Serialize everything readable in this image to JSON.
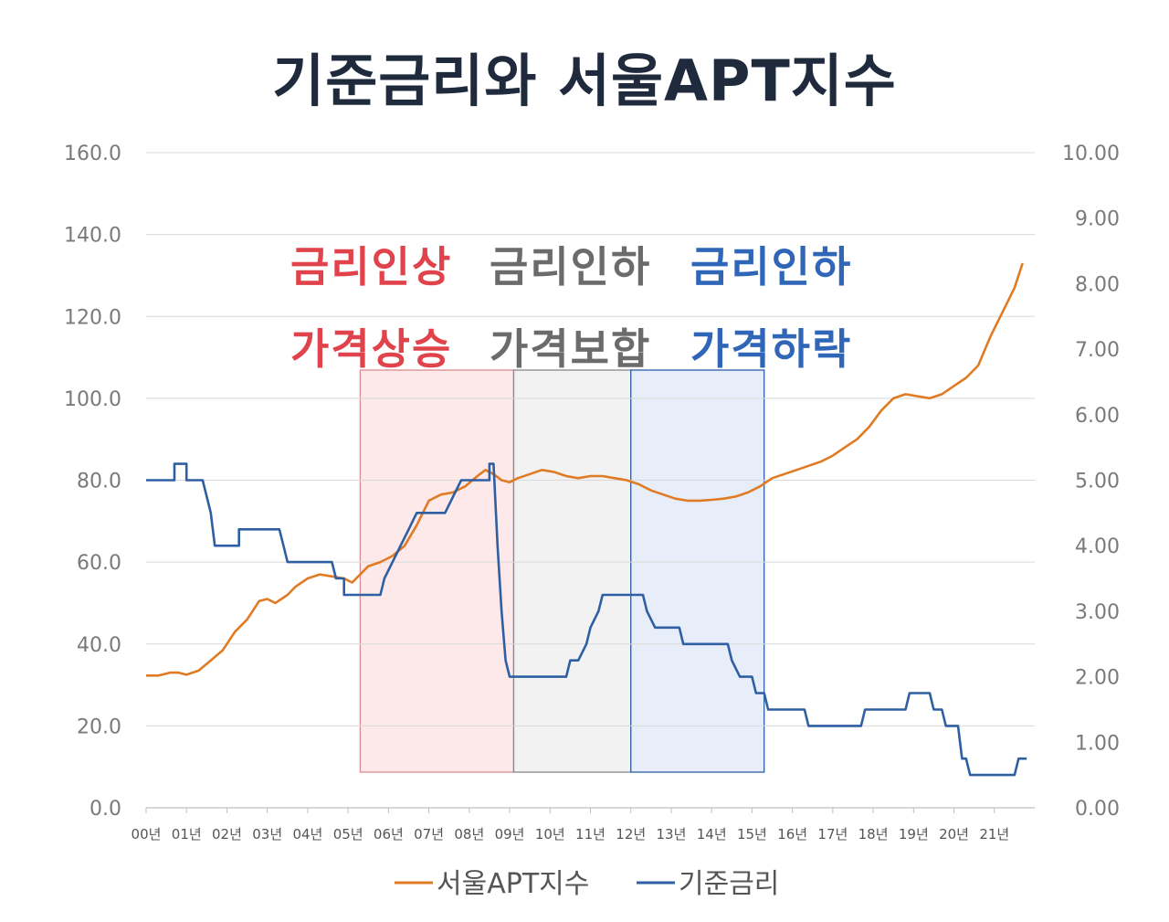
{
  "chart_data": {
    "type": "line",
    "title": "기준금리와 서울APT지수",
    "x_categories": [
      "00년",
      "01년",
      "02년",
      "03년",
      "04년",
      "05년",
      "06년",
      "07년",
      "08년",
      "09년",
      "10년",
      "11년",
      "12년",
      "13년",
      "14년",
      "15년",
      "16년",
      "17년",
      "18년",
      "19년",
      "20년",
      "21년"
    ],
    "y_left": {
      "ticks": [
        "0.0",
        "20.0",
        "40.0",
        "60.0",
        "80.0",
        "100.0",
        "120.0",
        "140.0",
        "160.0"
      ],
      "range": [
        0,
        160
      ]
    },
    "y_right": {
      "ticks": [
        "0.00",
        "1.00",
        "2.00",
        "3.00",
        "4.00",
        "5.00",
        "6.00",
        "7.00",
        "8.00",
        "9.00",
        "10.00"
      ],
      "range": [
        0,
        10
      ]
    },
    "grid": true,
    "legend_position": "bottom",
    "series": [
      {
        "name": "서울APT지수",
        "axis": "left",
        "color": "#e07b24",
        "points": [
          [
            0,
            32.3
          ],
          [
            0.3,
            32.3
          ],
          [
            0.6,
            33
          ],
          [
            0.8,
            33
          ],
          [
            1.0,
            32.5
          ],
          [
            1.3,
            33.5
          ],
          [
            1.6,
            36
          ],
          [
            1.9,
            38.5
          ],
          [
            2.2,
            43
          ],
          [
            2.5,
            46
          ],
          [
            2.8,
            50.5
          ],
          [
            3.0,
            51
          ],
          [
            3.2,
            50
          ],
          [
            3.5,
            52
          ],
          [
            3.7,
            54
          ],
          [
            4.0,
            56
          ],
          [
            4.3,
            57
          ],
          [
            4.6,
            56.5
          ],
          [
            4.9,
            56
          ],
          [
            5.1,
            55
          ],
          [
            5.3,
            57
          ],
          [
            5.5,
            59
          ],
          [
            5.8,
            60
          ],
          [
            6.1,
            61.5
          ],
          [
            6.4,
            64
          ],
          [
            6.7,
            69
          ],
          [
            7.0,
            75
          ],
          [
            7.3,
            76.5
          ],
          [
            7.6,
            77
          ],
          [
            7.9,
            78.5
          ],
          [
            8.2,
            81
          ],
          [
            8.4,
            82.5
          ],
          [
            8.6,
            81.5
          ],
          [
            8.8,
            80
          ],
          [
            9.0,
            79.5
          ],
          [
            9.2,
            80.5
          ],
          [
            9.5,
            81.5
          ],
          [
            9.8,
            82.5
          ],
          [
            10.1,
            82
          ],
          [
            10.4,
            81
          ],
          [
            10.7,
            80.5
          ],
          [
            11.0,
            81
          ],
          [
            11.3,
            81
          ],
          [
            11.6,
            80.5
          ],
          [
            11.9,
            80
          ],
          [
            12.2,
            79
          ],
          [
            12.5,
            77.5
          ],
          [
            12.8,
            76.5
          ],
          [
            13.1,
            75.5
          ],
          [
            13.4,
            75
          ],
          [
            13.7,
            75
          ],
          [
            14.0,
            75.2
          ],
          [
            14.3,
            75.5
          ],
          [
            14.6,
            76
          ],
          [
            14.9,
            77
          ],
          [
            15.2,
            78.5
          ],
          [
            15.5,
            80.5
          ],
          [
            15.8,
            81.5
          ],
          [
            16.1,
            82.5
          ],
          [
            16.4,
            83.5
          ],
          [
            16.7,
            84.5
          ],
          [
            17.0,
            86
          ],
          [
            17.3,
            88
          ],
          [
            17.6,
            90
          ],
          [
            17.9,
            93
          ],
          [
            18.2,
            97
          ],
          [
            18.5,
            100
          ],
          [
            18.8,
            101
          ],
          [
            19.1,
            100.5
          ],
          [
            19.4,
            100
          ],
          [
            19.7,
            101
          ],
          [
            20.0,
            103
          ],
          [
            20.3,
            105
          ],
          [
            20.6,
            108
          ],
          [
            20.9,
            115
          ],
          [
            21.2,
            121
          ],
          [
            21.5,
            127
          ],
          [
            21.7,
            133
          ]
        ]
      },
      {
        "name": "기준금리",
        "axis": "right",
        "color": "#2e5fa3",
        "points": [
          [
            0,
            5.0
          ],
          [
            0.7,
            5.0
          ],
          [
            0.7,
            5.25
          ],
          [
            1.0,
            5.25
          ],
          [
            1.0,
            5.0
          ],
          [
            1.4,
            5.0
          ],
          [
            1.6,
            4.5
          ],
          [
            1.7,
            4.0
          ],
          [
            2.3,
            4.0
          ],
          [
            2.3,
            4.25
          ],
          [
            3.3,
            4.25
          ],
          [
            3.4,
            4.0
          ],
          [
            3.5,
            3.75
          ],
          [
            4.6,
            3.75
          ],
          [
            4.7,
            3.5
          ],
          [
            4.9,
            3.5
          ],
          [
            4.9,
            3.25
          ],
          [
            5.8,
            3.25
          ],
          [
            5.9,
            3.5
          ],
          [
            6.1,
            3.75
          ],
          [
            6.3,
            4.0
          ],
          [
            6.5,
            4.25
          ],
          [
            6.7,
            4.5
          ],
          [
            7.0,
            4.5
          ],
          [
            7.4,
            4.5
          ],
          [
            7.6,
            4.75
          ],
          [
            7.8,
            5.0
          ],
          [
            8.5,
            5.0
          ],
          [
            8.5,
            5.25
          ],
          [
            8.6,
            5.25
          ],
          [
            8.7,
            4.0
          ],
          [
            8.8,
            3.0
          ],
          [
            8.9,
            2.25
          ],
          [
            9.0,
            2.0
          ],
          [
            10.4,
            2.0
          ],
          [
            10.5,
            2.25
          ],
          [
            10.7,
            2.25
          ],
          [
            10.9,
            2.5
          ],
          [
            11.0,
            2.75
          ],
          [
            11.2,
            3.0
          ],
          [
            11.3,
            3.25
          ],
          [
            12.3,
            3.25
          ],
          [
            12.4,
            3.0
          ],
          [
            12.6,
            2.75
          ],
          [
            13.2,
            2.75
          ],
          [
            13.3,
            2.5
          ],
          [
            14.4,
            2.5
          ],
          [
            14.5,
            2.25
          ],
          [
            14.7,
            2.0
          ],
          [
            15.0,
            2.0
          ],
          [
            15.1,
            1.75
          ],
          [
            15.3,
            1.75
          ],
          [
            15.4,
            1.5
          ],
          [
            16.3,
            1.5
          ],
          [
            16.4,
            1.25
          ],
          [
            17.7,
            1.25
          ],
          [
            17.8,
            1.5
          ],
          [
            18.8,
            1.5
          ],
          [
            18.9,
            1.75
          ],
          [
            19.4,
            1.75
          ],
          [
            19.5,
            1.5
          ],
          [
            19.7,
            1.5
          ],
          [
            19.8,
            1.25
          ],
          [
            20.1,
            1.25
          ],
          [
            20.2,
            0.75
          ],
          [
            20.3,
            0.75
          ],
          [
            20.4,
            0.5
          ],
          [
            21.5,
            0.5
          ],
          [
            21.6,
            0.75
          ],
          [
            21.8,
            0.75
          ]
        ]
      }
    ],
    "regions": [
      {
        "x_start": 5.3,
        "x_end": 9.1,
        "fill": "#fde9ea",
        "stroke": "#d98c90"
      },
      {
        "x_start": 9.1,
        "x_end": 12.0,
        "fill": "#f2f2f2",
        "stroke": "#888888"
      },
      {
        "x_start": 12.0,
        "x_end": 15.3,
        "fill": "#e8eef9",
        "stroke": "#2e5fa3"
      }
    ]
  },
  "annotations": [
    {
      "line1": "금리인상",
      "line2": "가격상승",
      "color": "#e0434b"
    },
    {
      "line1": "금리인하",
      "line2": "가격보합",
      "color": "#6b6b6b"
    },
    {
      "line1": "금리인하",
      "line2": "가격하락",
      "color": "#2f66b8"
    }
  ]
}
